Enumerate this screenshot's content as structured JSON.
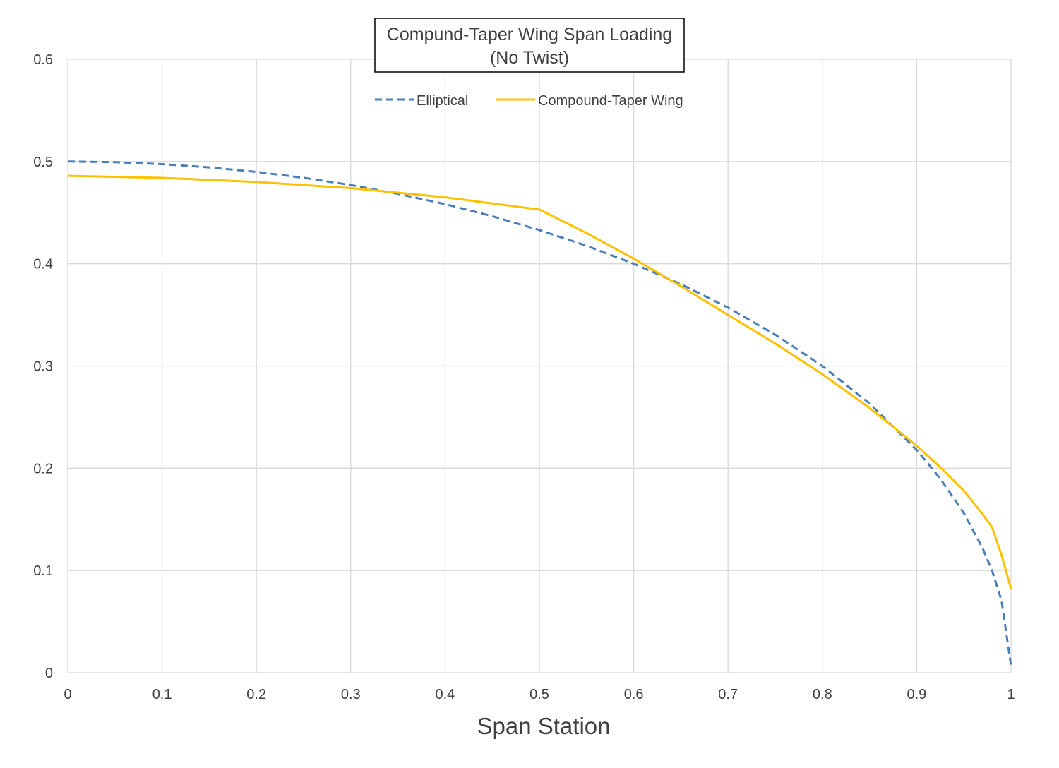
{
  "chart_data": {
    "type": "line",
    "title": "Compund-Taper Wing Span Loading",
    "subtitle": "(No Twist)",
    "xlabel": "Span Station",
    "ylabel": "",
    "xlim": [
      0,
      1
    ],
    "ylim": [
      0,
      0.6
    ],
    "x_ticks": [
      "0",
      "0.1",
      "0.2",
      "0.3",
      "0.4",
      "0.5",
      "0.6",
      "0.7",
      "0.8",
      "0.9",
      "1"
    ],
    "y_ticks": [
      "0",
      "0.1",
      "0.2",
      "0.3",
      "0.4",
      "0.5",
      "0.6"
    ],
    "grid": true,
    "legend_position": "top-center",
    "series": [
      {
        "name": "Elliptical",
        "style": "dashed",
        "color": "#4a7ebb",
        "x": [
          0,
          0.05,
          0.1,
          0.15,
          0.2,
          0.25,
          0.3,
          0.35,
          0.4,
          0.45,
          0.5,
          0.55,
          0.6,
          0.65,
          0.7,
          0.75,
          0.8,
          0.85,
          0.9,
          0.925,
          0.95,
          0.97,
          0.98,
          0.99,
          1.0
        ],
        "y": [
          0.5,
          0.4994,
          0.4975,
          0.4943,
          0.4899,
          0.4841,
          0.477,
          0.4684,
          0.4583,
          0.4465,
          0.433,
          0.4176,
          0.4,
          0.38,
          0.3571,
          0.3307,
          0.3,
          0.2634,
          0.2179,
          0.1898,
          0.1561,
          0.1216,
          0.0995,
          0.0705,
          0.007
        ]
      },
      {
        "name": "Compound-Taper Wing",
        "style": "solid",
        "color": "#ffc000",
        "x": [
          0,
          0.1,
          0.2,
          0.3,
          0.4,
          0.5,
          0.55,
          0.6,
          0.65,
          0.7,
          0.75,
          0.8,
          0.85,
          0.9,
          0.925,
          0.95,
          0.97,
          0.98,
          0.99,
          1.0
        ],
        "y": [
          0.486,
          0.484,
          0.48,
          0.474,
          0.465,
          0.453,
          0.43,
          0.405,
          0.378,
          0.35,
          0.322,
          0.292,
          0.259,
          0.222,
          0.201,
          0.178,
          0.155,
          0.142,
          0.115,
          0.082
        ]
      }
    ]
  }
}
